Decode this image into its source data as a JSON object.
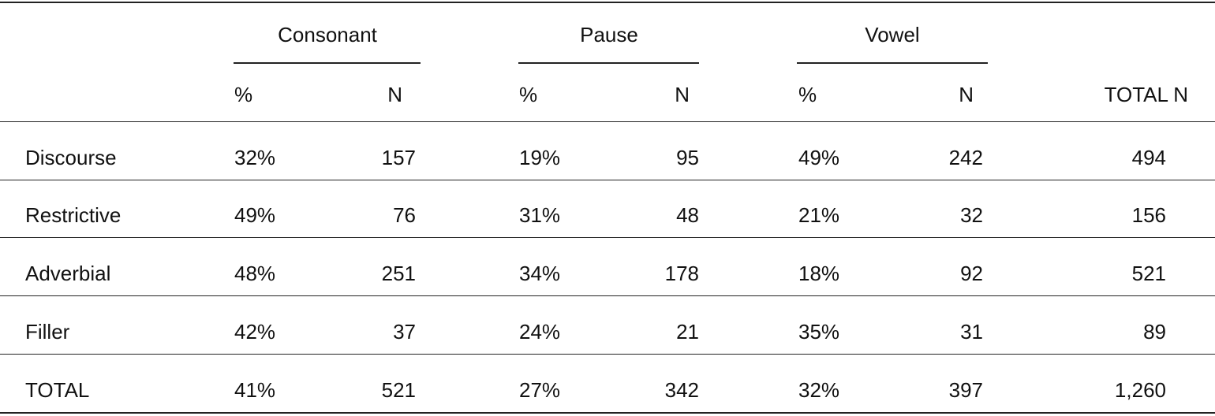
{
  "table": {
    "group_headers": [
      "Consonant",
      "Pause",
      "Vowel"
    ],
    "sub_headers": [
      "%",
      "N",
      "%",
      "N",
      "%",
      "N",
      "TOTAL N"
    ],
    "rows": [
      [
        "Discourse",
        "32%",
        "157",
        "19%",
        "95",
        "49%",
        "242",
        "494"
      ],
      [
        "Restrictive",
        "49%",
        "76",
        "31%",
        "48",
        "21%",
        "32",
        "156"
      ],
      [
        "Adverbial",
        "48%",
        "251",
        "34%",
        "178",
        "18%",
        "92",
        "521"
      ],
      [
        "Filler",
        "42%",
        "37",
        "24%",
        "21",
        "35%",
        "31",
        "89"
      ],
      [
        "TOTAL",
        "41%",
        "521",
        "27%",
        "342",
        "32%",
        "397",
        "1,260"
      ]
    ]
  }
}
